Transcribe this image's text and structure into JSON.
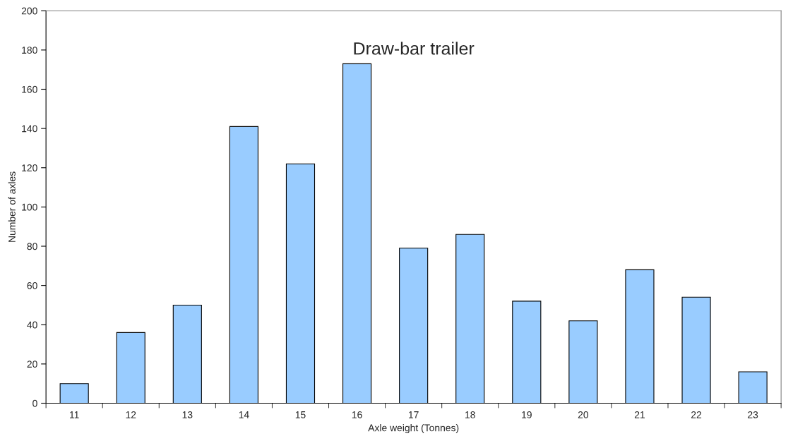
{
  "chart_data": {
    "type": "bar",
    "title": "Draw-bar trailer",
    "xlabel": "Axle weight (Tonnes)",
    "ylabel": "Number of axles",
    "categories": [
      "11",
      "12",
      "13",
      "14",
      "15",
      "16",
      "17",
      "18",
      "19",
      "20",
      "21",
      "22",
      "23"
    ],
    "values": [
      10,
      36,
      50,
      141,
      122,
      173,
      79,
      86,
      52,
      42,
      68,
      54,
      16
    ],
    "color": "#99ccff",
    "ylim": [
      0,
      200
    ],
    "yticks": [
      0,
      20,
      40,
      60,
      80,
      100,
      120,
      140,
      160,
      180,
      200
    ],
    "grid": false,
    "legend": false
  }
}
